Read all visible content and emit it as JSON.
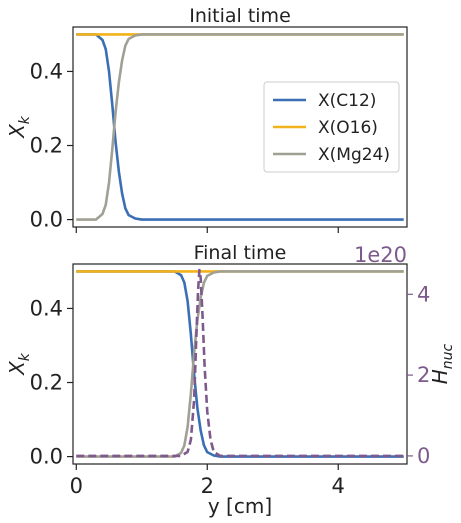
{
  "colors": {
    "c12": "#3a6fb5",
    "o16": "#f2b21b",
    "mg24": "#a0a094",
    "hnuc": "#7e5a8c"
  },
  "chart_data": [
    {
      "type": "line",
      "title": "Initial time",
      "ylabel": "X_k",
      "xlim": [
        -0.05,
        5.05
      ],
      "ylim": [
        -0.02,
        0.52
      ],
      "yticks": [
        {
          "v": 0.0,
          "label": "0.0"
        },
        {
          "v": 0.2,
          "label": "0.2"
        },
        {
          "v": 0.4,
          "label": "0.4"
        }
      ],
      "xticks": [
        0,
        2,
        4
      ],
      "legend": {
        "position": "center-right",
        "entries": [
          {
            "name": "X(C12)",
            "color": "#3a6fb5"
          },
          {
            "name": "X(O16)",
            "color": "#f2b21b"
          },
          {
            "name": "X(Mg24)",
            "color": "#a0a094"
          }
        ]
      },
      "series": [
        {
          "name": "X(C12)",
          "x": [
            0.0,
            0.3,
            0.4,
            0.45,
            0.5,
            0.55,
            0.6,
            0.65,
            0.7,
            0.75,
            0.8,
            0.9,
            1.0,
            5.0
          ],
          "y": [
            0.5,
            0.5,
            0.485,
            0.46,
            0.4,
            0.31,
            0.21,
            0.13,
            0.07,
            0.03,
            0.012,
            0.003,
            0.0,
            0.0
          ]
        },
        {
          "name": "X(O16)",
          "x": [
            0.0,
            5.0
          ],
          "y": [
            0.5,
            0.5
          ]
        },
        {
          "name": "X(Mg24)",
          "x": [
            0.0,
            0.3,
            0.4,
            0.45,
            0.5,
            0.55,
            0.6,
            0.65,
            0.7,
            0.75,
            0.8,
            0.9,
            1.0,
            5.0
          ],
          "y": [
            0.0,
            0.0,
            0.015,
            0.04,
            0.1,
            0.19,
            0.29,
            0.37,
            0.43,
            0.47,
            0.488,
            0.497,
            0.5,
            0.5
          ]
        }
      ]
    },
    {
      "type": "line",
      "title": "Final time",
      "xlabel": "y [cm]",
      "ylabel": "X_k",
      "ylabel_right": "H_nuc",
      "right_axis_offset": "1e20",
      "xlim": [
        -0.05,
        5.05
      ],
      "ylim": [
        -0.02,
        0.52
      ],
      "ylim_right": [
        -0.2,
        4.75
      ],
      "yticks": [
        {
          "v": 0.0,
          "label": "0.0"
        },
        {
          "v": 0.2,
          "label": "0.2"
        },
        {
          "v": 0.4,
          "label": "0.4"
        }
      ],
      "yticks_right": [
        {
          "v": 0,
          "label": "0"
        },
        {
          "v": 2,
          "label": "2"
        },
        {
          "v": 4,
          "label": "4"
        }
      ],
      "xticks": [
        0,
        2,
        4
      ],
      "series": [
        {
          "name": "X(C12)",
          "x": [
            0.0,
            1.5,
            1.6,
            1.65,
            1.7,
            1.75,
            1.8,
            1.85,
            1.9,
            1.95,
            2.0,
            2.1,
            2.2,
            5.0
          ],
          "y": [
            0.5,
            0.5,
            0.49,
            0.47,
            0.42,
            0.33,
            0.22,
            0.13,
            0.07,
            0.03,
            0.012,
            0.003,
            0.0,
            0.0
          ]
        },
        {
          "name": "X(O16)",
          "x": [
            0.0,
            5.0
          ],
          "y": [
            0.5,
            0.5
          ]
        },
        {
          "name": "X(Mg24)",
          "x": [
            0.0,
            1.5,
            1.6,
            1.65,
            1.7,
            1.75,
            1.8,
            1.85,
            1.9,
            1.95,
            2.0,
            2.1,
            2.2,
            5.0
          ],
          "y": [
            0.0,
            0.0,
            0.01,
            0.03,
            0.08,
            0.17,
            0.28,
            0.37,
            0.43,
            0.47,
            0.488,
            0.497,
            0.5,
            0.5
          ]
        },
        {
          "name": "H_nuc",
          "axis": "right",
          "dashed": true,
          "x": [
            0.0,
            1.6,
            1.7,
            1.75,
            1.8,
            1.83,
            1.86,
            1.88,
            1.9,
            1.93,
            1.96,
            2.0,
            2.05,
            2.1,
            2.2,
            5.0
          ],
          "y": [
            0.0,
            0.0,
            0.1,
            0.4,
            1.4,
            2.8,
            4.1,
            4.6,
            4.4,
            3.4,
            2.2,
            1.1,
            0.4,
            0.1,
            0.0,
            0.0
          ]
        }
      ]
    }
  ]
}
